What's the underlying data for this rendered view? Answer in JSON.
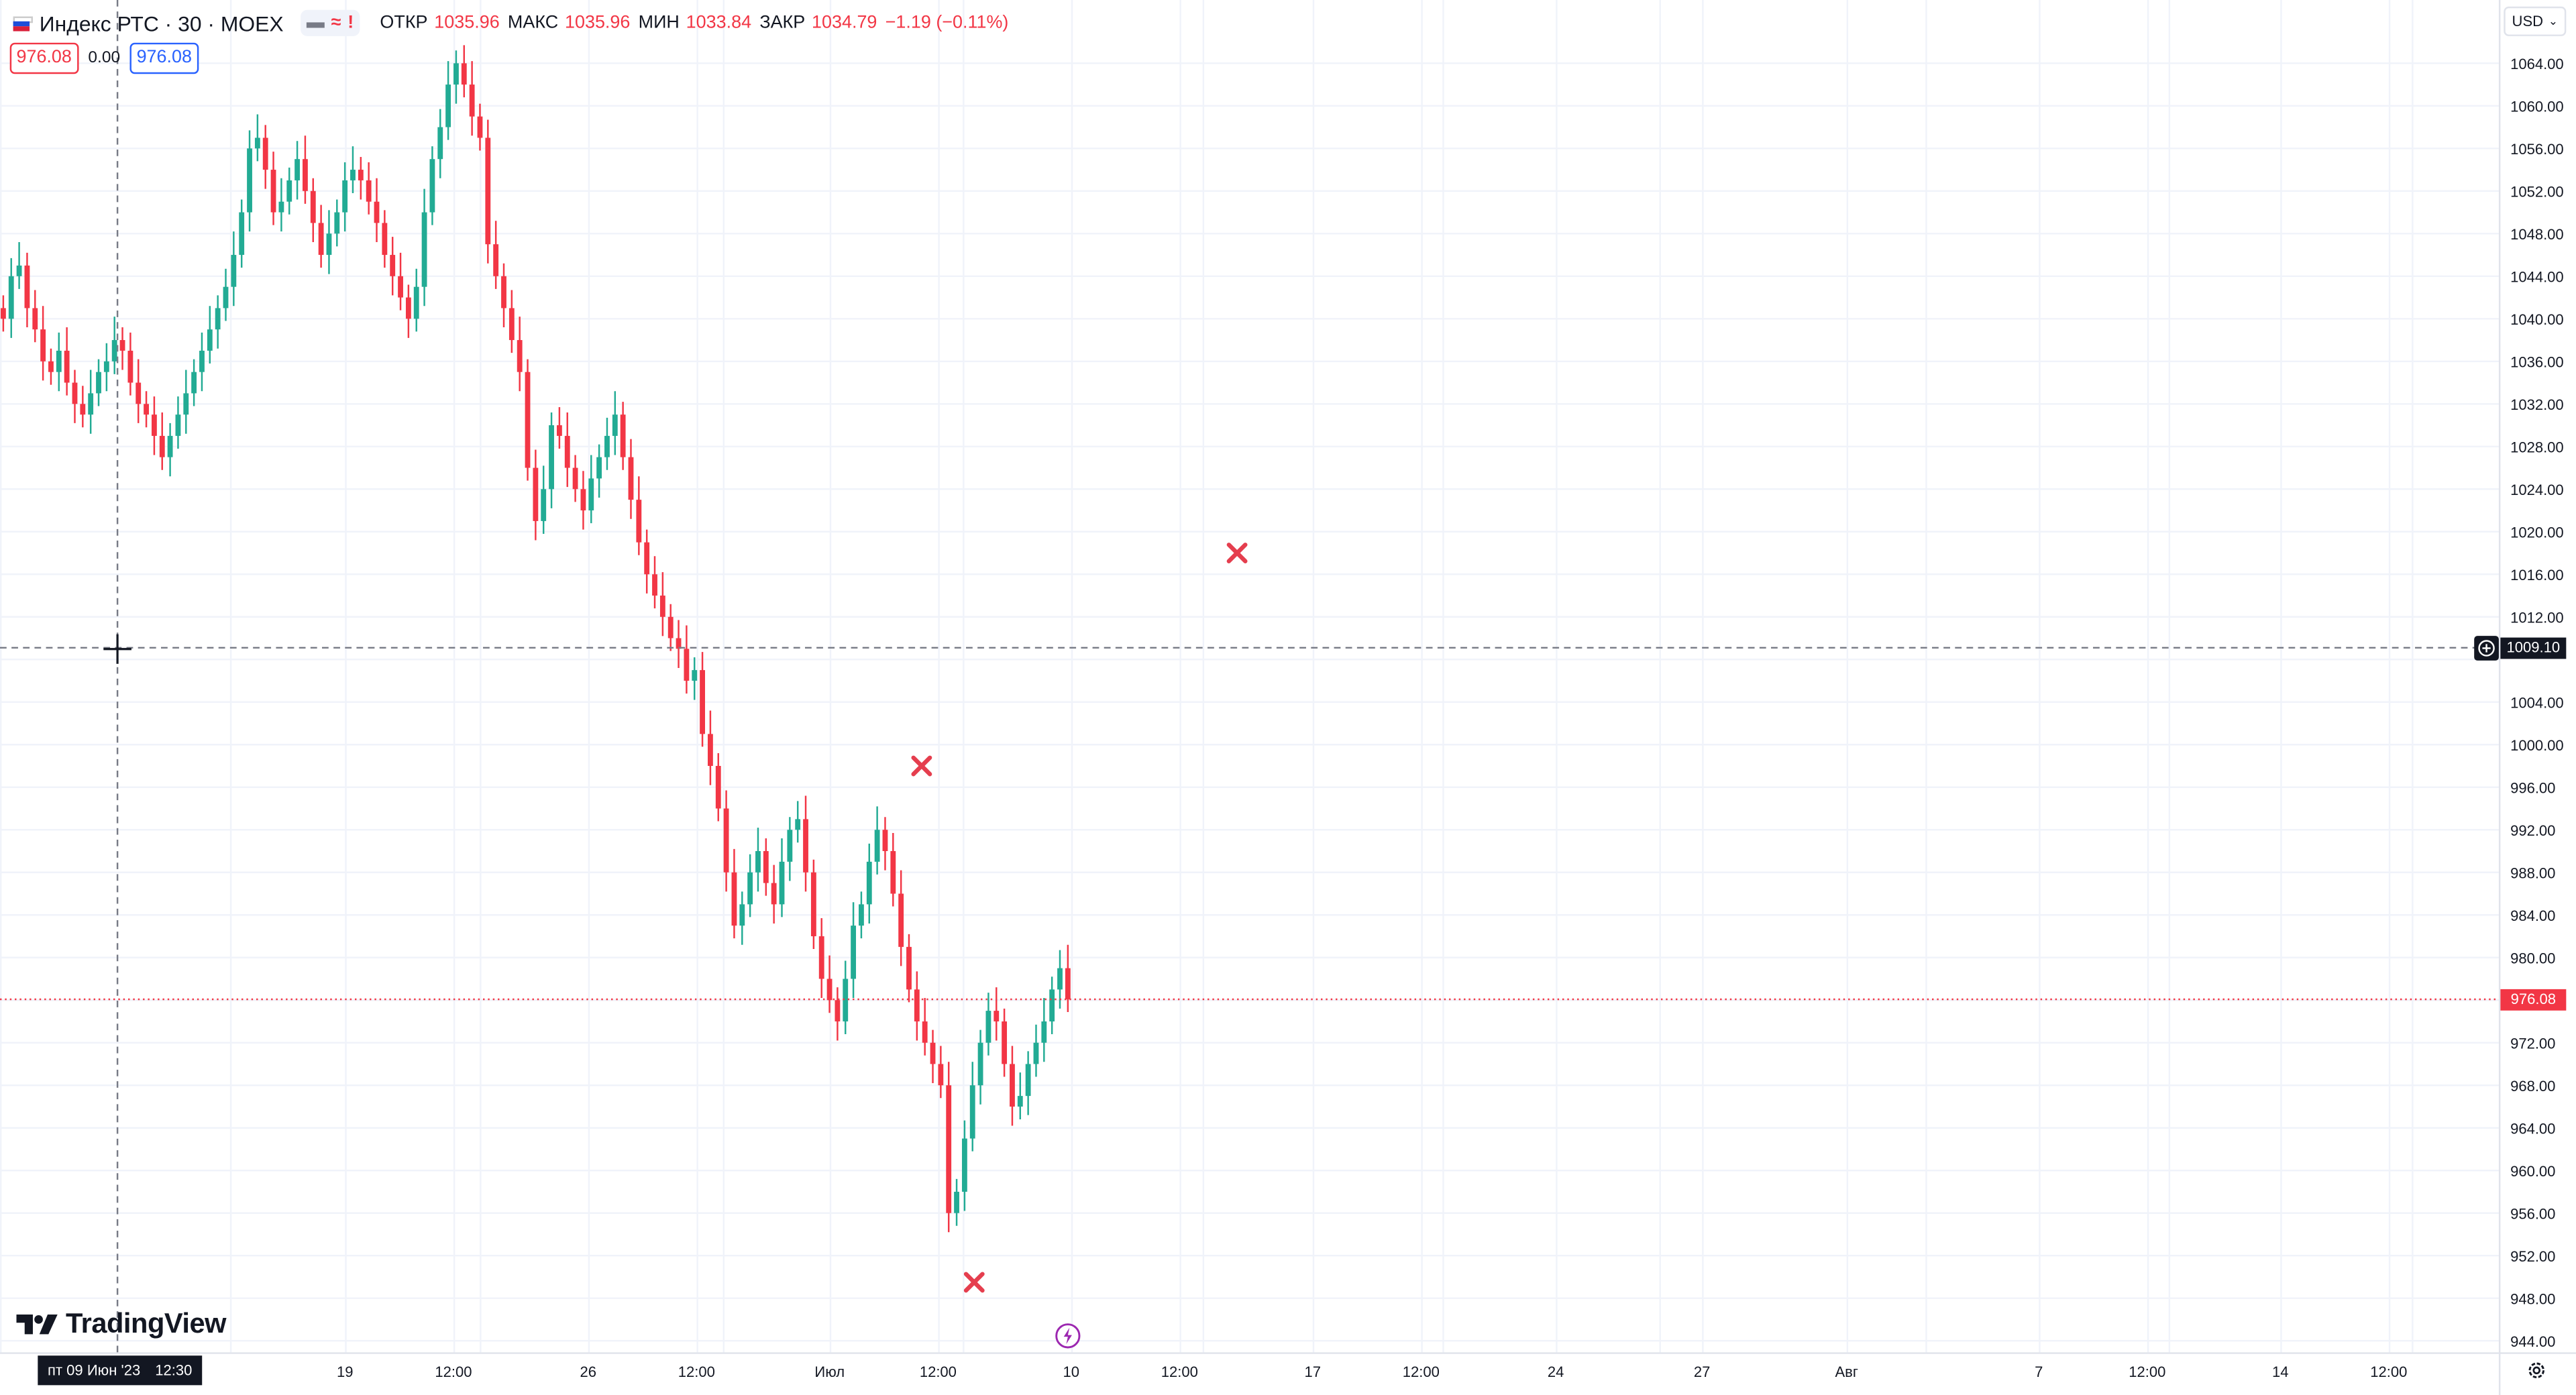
{
  "legend": {
    "symbol": "Индекс РТС · 30 · MOEX",
    "pill": [
      "▬",
      "≈",
      "!"
    ],
    "ohlc": [
      {
        "label": "ОТКР",
        "value": "1035.96"
      },
      {
        "label": "МАКС",
        "value": "1035.96"
      },
      {
        "label": "МИН",
        "value": "1033.84"
      },
      {
        "label": "ЗАКР",
        "value": "1034.79"
      }
    ],
    "change": "−1.19 (−0.11%)"
  },
  "trade": {
    "sell": "976.08",
    "spread": "0.00",
    "buy": "976.08"
  },
  "currency": {
    "label": "USD",
    "icon": "chevron-down-icon"
  },
  "y_axis": {
    "ticks": [
      "1064.00",
      "1060.00",
      "1056.00",
      "1052.00",
      "1048.00",
      "1044.00",
      "1040.00",
      "1036.00",
      "1032.00",
      "1028.00",
      "1024.00",
      "1020.00",
      "1016.00",
      "1012.00",
      "1004.00",
      "1000.00",
      "996.00",
      "992.00",
      "988.00",
      "984.00",
      "980.00",
      "972.00",
      "968.00",
      "964.00",
      "960.00",
      "956.00",
      "952.00",
      "948.00",
      "944.00"
    ],
    "crosshair_price": "1009.10",
    "last_price": "976.08"
  },
  "x_axis": {
    "ticks": [
      "19",
      "12:00",
      "26",
      "12:00",
      "Июл",
      "12:00",
      "10",
      "12:00",
      "17",
      "12:00",
      "24",
      "27",
      "Авг",
      "7",
      "12:00",
      "14",
      "12:00"
    ]
  },
  "cursor_date": {
    "date": "пт 09 Июн '23",
    "time": "12:30"
  },
  "logo": {
    "text": "TradingView"
  },
  "colors": {
    "up": "#22ab94",
    "down": "#f23645",
    "grid": "#f0f3fa",
    "marker": "#e53e4e",
    "replay": "#9c27b0"
  },
  "chart_data": {
    "type": "candlestick",
    "y_range": [
      942,
      1067
    ],
    "last_close": 976.08,
    "closes": [
      1040,
      1044,
      1045,
      1041,
      1039,
      1036,
      1035,
      1037,
      1034,
      1032,
      1031,
      1033,
      1035,
      1036,
      1038,
      1037,
      1034,
      1032,
      1031,
      1029,
      1027,
      1029,
      1031,
      1033,
      1035,
      1037,
      1039,
      1041,
      1043,
      1046,
      1050,
      1056,
      1057,
      1054,
      1050,
      1051,
      1053,
      1055,
      1052,
      1049,
      1046,
      1048,
      1050,
      1053,
      1054,
      1053,
      1051,
      1049,
      1046,
      1044,
      1042,
      1040,
      1043,
      1050,
      1055,
      1058,
      1062,
      1064,
      1062,
      1059,
      1057,
      1047,
      1044,
      1041,
      1038,
      1035,
      1026,
      1021,
      1024,
      1030,
      1029,
      1026,
      1024,
      1022,
      1025,
      1027,
      1029,
      1031,
      1027,
      1023,
      1019,
      1016,
      1014,
      1012,
      1010,
      1009,
      1006,
      1007,
      1001,
      998,
      994,
      988,
      983,
      985,
      988,
      990,
      987,
      985,
      989,
      992,
      993,
      988,
      982,
      978,
      976,
      974,
      978,
      983,
      985,
      989,
      992,
      990,
      986,
      981,
      977,
      974,
      972,
      970,
      968,
      956,
      958,
      963,
      968,
      972,
      975,
      974,
      970,
      966,
      967,
      970,
      972,
      974,
      977,
      979,
      976.08
    ]
  },
  "markers": [
    {
      "name": "x-marker-upper",
      "price": 1018
    },
    {
      "name": "x-marker-mid",
      "price": 998
    },
    {
      "name": "x-marker-low",
      "price": 949.5
    }
  ]
}
